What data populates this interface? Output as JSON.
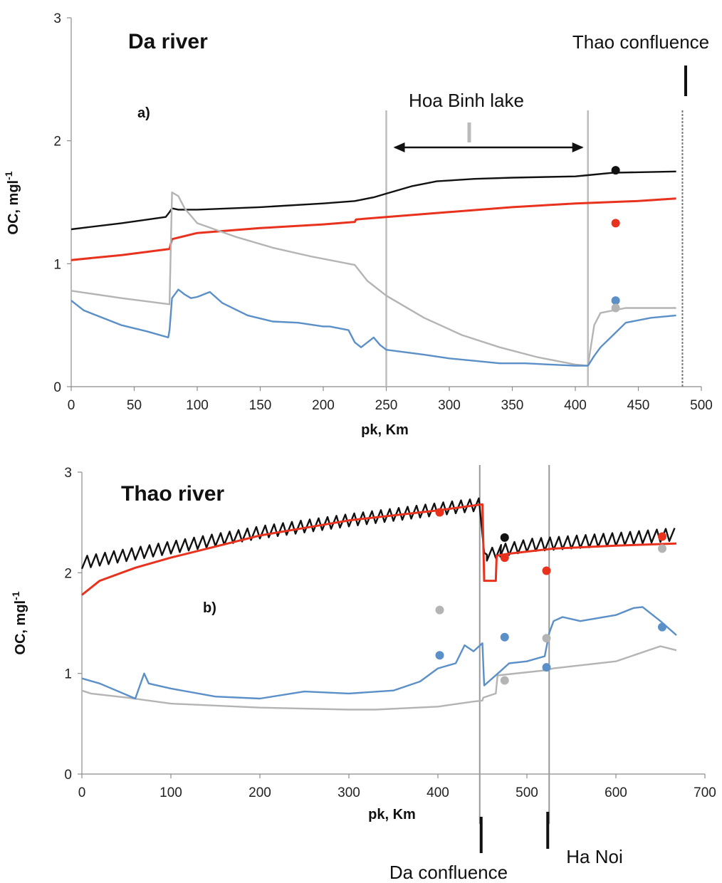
{
  "chart_data": [
    {
      "type": "line",
      "title": "Da river",
      "panel_label": "a)",
      "xlabel": "pk, Km",
      "ylabel": "OC, mgl-1",
      "xlim": [
        0,
        500
      ],
      "ylim": [
        0,
        3
      ],
      "xticks": [
        "0",
        "50",
        "100",
        "150",
        "200",
        "250",
        "300",
        "350",
        "400",
        "450",
        "500"
      ],
      "yticks": [
        "0",
        "1",
        "2",
        "3"
      ],
      "grid": false,
      "colors": {
        "black": "#111111",
        "red": "#e8321e",
        "gray": "#b4b4b4",
        "blue": "#5b8fc8"
      },
      "series": [
        {
          "color": "black",
          "x": [
            0,
            40,
            75,
            78,
            80,
            85,
            100,
            150,
            200,
            225,
            240,
            250,
            270,
            290,
            320,
            350,
            400,
            410,
            430,
            480
          ],
          "y": [
            1.28,
            1.33,
            1.38,
            1.42,
            1.45,
            1.44,
            1.44,
            1.46,
            1.49,
            1.51,
            1.54,
            1.57,
            1.63,
            1.67,
            1.69,
            1.7,
            1.71,
            1.72,
            1.74,
            1.75
          ]
        },
        {
          "color": "red",
          "x": [
            0,
            40,
            78,
            80,
            100,
            150,
            200,
            225,
            226,
            250,
            300,
            350,
            400,
            450,
            480
          ],
          "y": [
            1.03,
            1.07,
            1.12,
            1.2,
            1.25,
            1.29,
            1.32,
            1.34,
            1.36,
            1.38,
            1.42,
            1.46,
            1.49,
            1.51,
            1.53
          ]
        },
        {
          "color": "gray",
          "x": [
            0,
            40,
            78,
            80,
            85,
            90,
            100,
            130,
            160,
            190,
            225,
            235,
            250,
            280,
            310,
            340,
            370,
            400,
            410,
            415,
            420,
            440,
            480
          ],
          "y": [
            0.78,
            0.72,
            0.67,
            1.58,
            1.55,
            1.45,
            1.33,
            1.22,
            1.13,
            1.06,
            0.99,
            0.86,
            0.74,
            0.56,
            0.42,
            0.32,
            0.24,
            0.18,
            0.17,
            0.5,
            0.6,
            0.64,
            0.64
          ]
        },
        {
          "color": "blue",
          "x": [
            0,
            10,
            40,
            60,
            77,
            78,
            80,
            85,
            90,
            95,
            100,
            110,
            120,
            140,
            160,
            180,
            200,
            205,
            220,
            225,
            230,
            240,
            245,
            250,
            280,
            300,
            320,
            340,
            360,
            380,
            400,
            410,
            415,
            420,
            430,
            440,
            460,
            480
          ],
          "y": [
            0.7,
            0.62,
            0.5,
            0.45,
            0.4,
            0.46,
            0.72,
            0.79,
            0.75,
            0.72,
            0.73,
            0.77,
            0.68,
            0.58,
            0.53,
            0.52,
            0.49,
            0.49,
            0.46,
            0.36,
            0.32,
            0.4,
            0.34,
            0.3,
            0.26,
            0.23,
            0.21,
            0.19,
            0.19,
            0.18,
            0.17,
            0.17,
            0.25,
            0.32,
            0.42,
            0.52,
            0.56,
            0.58
          ]
        }
      ],
      "observations": [
        {
          "color": "black",
          "x": 432,
          "y": 1.76
        },
        {
          "color": "red",
          "x": 432,
          "y": 1.33
        },
        {
          "color": "blue",
          "x": 432,
          "y": 0.7
        },
        {
          "color": "gray",
          "x": 432,
          "y": 0.64
        }
      ],
      "annotations": {
        "lake_label": "Hoa Binh lake",
        "lake_start_km": 250,
        "lake_end_km": 410,
        "confluence_label": "Thao confluence",
        "confluence_km": 485
      }
    },
    {
      "type": "line",
      "title": "Thao river",
      "panel_label": "b)",
      "xlabel": "pk, Km",
      "ylabel": "OC, mgl-1",
      "xlim": [
        0,
        700
      ],
      "ylim": [
        0,
        3
      ],
      "xticks": [
        "0",
        "100",
        "200",
        "300",
        "400",
        "500",
        "600",
        "700"
      ],
      "yticks": [
        "0",
        "1",
        "2",
        "3"
      ],
      "grid": false,
      "colors": {
        "black": "#111111",
        "red": "#e8321e",
        "gray": "#b4b4b4",
        "blue": "#5b8fc8"
      },
      "series": [
        {
          "color": "black",
          "sawtooth": true,
          "x": [
            0,
            100,
            200,
            300,
            400,
            450,
            452,
            455,
            470,
            500,
            550,
            600,
            668
          ],
          "y": [
            2.1,
            2.25,
            2.4,
            2.52,
            2.63,
            2.68,
            2.2,
            2.18,
            2.22,
            2.27,
            2.3,
            2.33,
            2.38
          ]
        },
        {
          "color": "red",
          "x": [
            0,
            20,
            60,
            100,
            200,
            300,
            400,
            450,
            452,
            465,
            466,
            480,
            530,
            600,
            668
          ],
          "y": [
            1.78,
            1.92,
            2.05,
            2.15,
            2.37,
            2.52,
            2.62,
            2.68,
            1.92,
            1.92,
            2.17,
            2.19,
            2.24,
            2.27,
            2.29
          ]
        },
        {
          "color": "gray",
          "x": [
            0,
            10,
            50,
            100,
            200,
            300,
            330,
            400,
            440,
            450,
            451,
            465,
            467,
            520,
            530,
            600,
            650,
            668
          ],
          "y": [
            0.83,
            0.8,
            0.76,
            0.7,
            0.66,
            0.64,
            0.64,
            0.67,
            0.72,
            0.73,
            0.76,
            0.8,
            0.98,
            1.03,
            1.05,
            1.12,
            1.27,
            1.23
          ]
        },
        {
          "color": "blue",
          "x": [
            0,
            20,
            60,
            70,
            75,
            100,
            150,
            200,
            250,
            300,
            350,
            380,
            400,
            420,
            430,
            440,
            450,
            452,
            470,
            480,
            500,
            520,
            525,
            530,
            540,
            560,
            600,
            620,
            630,
            650,
            668
          ],
          "y": [
            0.95,
            0.9,
            0.75,
            1.0,
            0.9,
            0.85,
            0.77,
            0.75,
            0.82,
            0.8,
            0.83,
            0.92,
            1.05,
            1.1,
            1.28,
            1.22,
            1.3,
            0.88,
            1.02,
            1.1,
            1.12,
            1.17,
            1.4,
            1.52,
            1.56,
            1.52,
            1.58,
            1.65,
            1.66,
            1.52,
            1.38
          ]
        }
      ],
      "observations": [
        {
          "color": "red",
          "x": 402,
          "y": 2.6
        },
        {
          "color": "gray",
          "x": 402,
          "y": 1.63
        },
        {
          "color": "blue",
          "x": 402,
          "y": 1.18
        },
        {
          "color": "black",
          "x": 475,
          "y": 2.35
        },
        {
          "color": "red",
          "x": 475,
          "y": 2.15
        },
        {
          "color": "blue",
          "x": 475,
          "y": 1.36
        },
        {
          "color": "gray",
          "x": 475,
          "y": 0.93
        },
        {
          "color": "red",
          "x": 522,
          "y": 2.02
        },
        {
          "color": "gray",
          "x": 522,
          "y": 1.35
        },
        {
          "color": "blue",
          "x": 522,
          "y": 1.06
        },
        {
          "color": "red",
          "x": 652,
          "y": 2.36
        },
        {
          "color": "gray",
          "x": 652,
          "y": 2.24
        },
        {
          "color": "blue",
          "x": 652,
          "y": 1.46
        }
      ],
      "annotations": {
        "confluence_label": "Da confluence",
        "confluence_km": 447,
        "city_label": "Ha Noi",
        "city_km": 525
      }
    }
  ]
}
